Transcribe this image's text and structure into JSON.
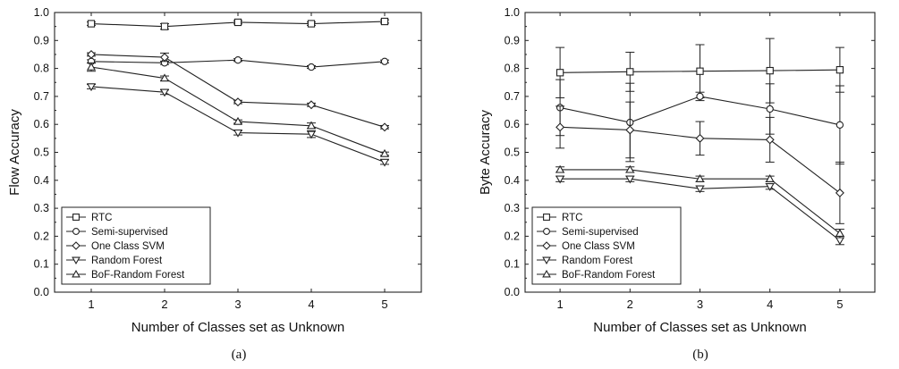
{
  "chart_data": [
    {
      "type": "line",
      "caption": "(a)",
      "xlabel": "Number of Classes set as Unknown",
      "ylabel": "Flow Accuracy",
      "x": [
        1,
        2,
        3,
        4,
        5
      ],
      "xlim": [
        0.5,
        5.5
      ],
      "ylim": [
        0.0,
        1.0
      ],
      "xticks": [
        "1",
        "2",
        "3",
        "4",
        "5"
      ],
      "yticks": [
        "0.0",
        "0.1",
        "0.2",
        "0.3",
        "0.4",
        "0.5",
        "0.6",
        "0.7",
        "0.8",
        "0.9",
        "1.0"
      ],
      "grid": false,
      "legend_position": "bottom-left",
      "series": [
        {
          "name": "RTC",
          "marker": "square",
          "values": [
            0.96,
            0.95,
            0.965,
            0.96,
            0.968
          ],
          "errors": [
            0.006,
            0.01,
            0.006,
            0.006,
            0.006
          ]
        },
        {
          "name": "Semi-supervised",
          "marker": "circle",
          "values": [
            0.825,
            0.82,
            0.83,
            0.805,
            0.825
          ],
          "errors": [
            0.006,
            0.006,
            0.005,
            0.005,
            0.005
          ]
        },
        {
          "name": "One Class SVM",
          "marker": "diamond",
          "values": [
            0.85,
            0.84,
            0.68,
            0.67,
            0.59
          ],
          "errors": [
            0.006,
            0.015,
            0.006,
            0.006,
            0.006
          ]
        },
        {
          "name": "Random Forest",
          "marker": "triangle-down",
          "values": [
            0.735,
            0.715,
            0.57,
            0.565,
            0.465
          ],
          "errors": [
            0.008,
            0.008,
            0.008,
            0.012,
            0.008
          ]
        },
        {
          "name": "BoF-Random Forest",
          "marker": "triangle-up",
          "values": [
            0.805,
            0.765,
            0.61,
            0.595,
            0.495
          ],
          "errors": [
            0.015,
            0.008,
            0.006,
            0.01,
            0.006
          ]
        }
      ]
    },
    {
      "type": "line",
      "caption": "(b)",
      "xlabel": "Number of Classes set as Unknown",
      "ylabel": "Byte Accuracy",
      "x": [
        1,
        2,
        3,
        4,
        5
      ],
      "xlim": [
        0.5,
        5.5
      ],
      "ylim": [
        0.0,
        1.0
      ],
      "xticks": [
        "1",
        "2",
        "3",
        "4",
        "5"
      ],
      "yticks": [
        "0.0",
        "0.1",
        "0.2",
        "0.3",
        "0.4",
        "0.5",
        "0.6",
        "0.7",
        "0.8",
        "0.9",
        "1.0"
      ],
      "grid": false,
      "legend_position": "bottom-left",
      "series": [
        {
          "name": "RTC",
          "marker": "square",
          "values": [
            0.785,
            0.788,
            0.79,
            0.792,
            0.795
          ],
          "errors": [
            0.09,
            0.07,
            0.095,
            0.115,
            0.08
          ]
        },
        {
          "name": "Semi-supervised",
          "marker": "circle",
          "values": [
            0.66,
            0.607,
            0.7,
            0.655,
            0.598
          ],
          "errors": [
            0.1,
            0.14,
            0.015,
            0.09,
            0.14
          ]
        },
        {
          "name": "One Class SVM",
          "marker": "diamond",
          "values": [
            0.59,
            0.58,
            0.55,
            0.545,
            0.355
          ],
          "errors": [
            0.075,
            0.1,
            0.06,
            0.08,
            0.11
          ]
        },
        {
          "name": "Random Forest",
          "marker": "triangle-down",
          "values": [
            0.405,
            0.405,
            0.37,
            0.378,
            0.185
          ],
          "errors": [
            0.01,
            0.01,
            0.01,
            0.01,
            0.015
          ]
        },
        {
          "name": "BoF-Random Forest",
          "marker": "triangle-up",
          "values": [
            0.438,
            0.438,
            0.405,
            0.405,
            0.21
          ],
          "errors": [
            0.01,
            0.01,
            0.01,
            0.01,
            0.015
          ]
        }
      ]
    }
  ]
}
